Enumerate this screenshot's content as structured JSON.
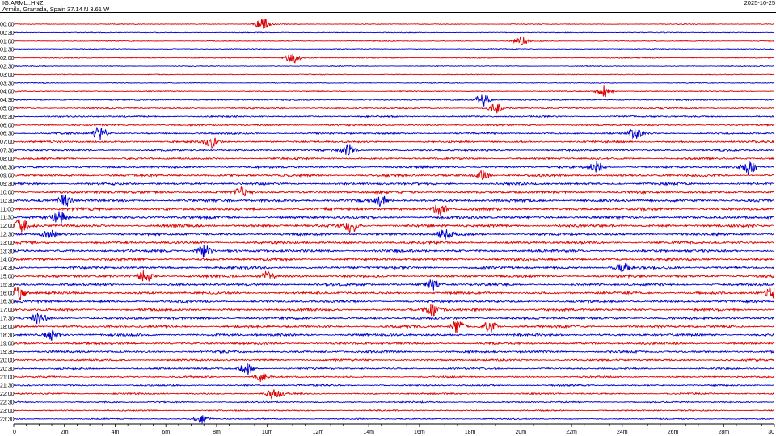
{
  "header": {
    "station_code": "IG.ARML..HNZ",
    "location": "Armila, Granada, Spain  37.14 N 3.61 W",
    "date": "2025-10-25"
  },
  "chart_data": {
    "type": "line",
    "subtype": "helicorder",
    "row_labels": [
      "00:00",
      "00:30",
      "01:00",
      "01:30",
      "02:00",
      "02:30",
      "03:00",
      "03:30",
      "04:00",
      "04:30",
      "05:00",
      "05:30",
      "06:00",
      "06:30",
      "07:00",
      "07:30",
      "08:00",
      "08:30",
      "09:00",
      "09:30",
      "10:00",
      "10:30",
      "11:00",
      "11:30",
      "12:00",
      "12:30",
      "13:00",
      "13:30",
      "14:00",
      "14:30",
      "15:00",
      "15:30",
      "16:00",
      "16:30",
      "17:00",
      "17:30",
      "18:00",
      "18:30",
      "19:00",
      "19:30",
      "20:00",
      "20:30",
      "21:00",
      "21:30",
      "22:00",
      "22:30",
      "23:00",
      "23:30"
    ],
    "row_colors": [
      "#dd0000",
      "#0000cc"
    ],
    "xlim": [
      0,
      30
    ],
    "x_unit": "minutes",
    "x_ticks": [
      "0",
      "2m",
      "4m",
      "6m",
      "8m",
      "10m",
      "12m",
      "14m",
      "16m",
      "18m",
      "20m",
      "22m",
      "24m",
      "26m",
      "28m",
      "30"
    ],
    "row_amplitude": [
      0.25,
      0.25,
      0.25,
      0.25,
      0.3,
      0.25,
      0.25,
      0.25,
      0.3,
      0.4,
      0.45,
      0.5,
      0.5,
      0.55,
      0.6,
      0.6,
      0.6,
      0.7,
      0.75,
      0.75,
      0.8,
      0.85,
      0.85,
      0.85,
      0.85,
      0.8,
      0.8,
      0.8,
      0.8,
      0.8,
      0.8,
      0.75,
      0.75,
      0.75,
      0.75,
      0.75,
      0.75,
      0.75,
      0.7,
      0.7,
      0.6,
      0.55,
      0.5,
      0.5,
      0.5,
      0.45,
      0.4,
      0.35
    ],
    "bursts": [
      {
        "row": 0,
        "minute": 9.8,
        "amp": 1.5
      },
      {
        "row": 2,
        "minute": 20.0,
        "amp": 1.1
      },
      {
        "row": 4,
        "minute": 11.0,
        "amp": 1.4
      },
      {
        "row": 8,
        "minute": 23.3,
        "amp": 1.5
      },
      {
        "row": 9,
        "minute": 18.5,
        "amp": 1.6
      },
      {
        "row": 10,
        "minute": 19.0,
        "amp": 1.2
      },
      {
        "row": 13,
        "minute": 3.4,
        "amp": 1.6
      },
      {
        "row": 13,
        "minute": 24.5,
        "amp": 1.6
      },
      {
        "row": 14,
        "minute": 7.8,
        "amp": 1.3
      },
      {
        "row": 15,
        "minute": 13.2,
        "amp": 1.4
      },
      {
        "row": 17,
        "minute": 23.0,
        "amp": 1.5
      },
      {
        "row": 17,
        "minute": 29.0,
        "amp": 1.8
      },
      {
        "row": 18,
        "minute": 18.5,
        "amp": 1.2
      },
      {
        "row": 20,
        "minute": 9.0,
        "amp": 1.2
      },
      {
        "row": 21,
        "minute": 2.0,
        "amp": 1.5
      },
      {
        "row": 21,
        "minute": 14.5,
        "amp": 1.3
      },
      {
        "row": 22,
        "minute": 16.8,
        "amp": 1.6
      },
      {
        "row": 23,
        "minute": 1.8,
        "amp": 1.4
      },
      {
        "row": 24,
        "minute": 0.3,
        "amp": 1.6
      },
      {
        "row": 24,
        "minute": 13.3,
        "amp": 1.6
      },
      {
        "row": 25,
        "minute": 1.4,
        "amp": 1.4
      },
      {
        "row": 25,
        "minute": 17.0,
        "amp": 1.3
      },
      {
        "row": 27,
        "minute": 7.5,
        "amp": 1.6
      },
      {
        "row": 29,
        "minute": 24.0,
        "amp": 1.3
      },
      {
        "row": 30,
        "minute": 5.2,
        "amp": 1.5
      },
      {
        "row": 30,
        "minute": 10.0,
        "amp": 1.3
      },
      {
        "row": 31,
        "minute": 16.5,
        "amp": 1.3
      },
      {
        "row": 32,
        "minute": 0.2,
        "amp": 1.8
      },
      {
        "row": 32,
        "minute": 29.9,
        "amp": 1.5
      },
      {
        "row": 34,
        "minute": 16.5,
        "amp": 1.3
      },
      {
        "row": 35,
        "minute": 1.0,
        "amp": 1.3
      },
      {
        "row": 36,
        "minute": 17.5,
        "amp": 1.6
      },
      {
        "row": 36,
        "minute": 18.8,
        "amp": 1.3
      },
      {
        "row": 37,
        "minute": 1.5,
        "amp": 1.3
      },
      {
        "row": 41,
        "minute": 9.2,
        "amp": 1.5
      },
      {
        "row": 42,
        "minute": 9.8,
        "amp": 1.2
      },
      {
        "row": 44,
        "minute": 10.3,
        "amp": 1.5
      },
      {
        "row": 47,
        "minute": 7.4,
        "amp": 1.1
      }
    ],
    "grid": false
  }
}
